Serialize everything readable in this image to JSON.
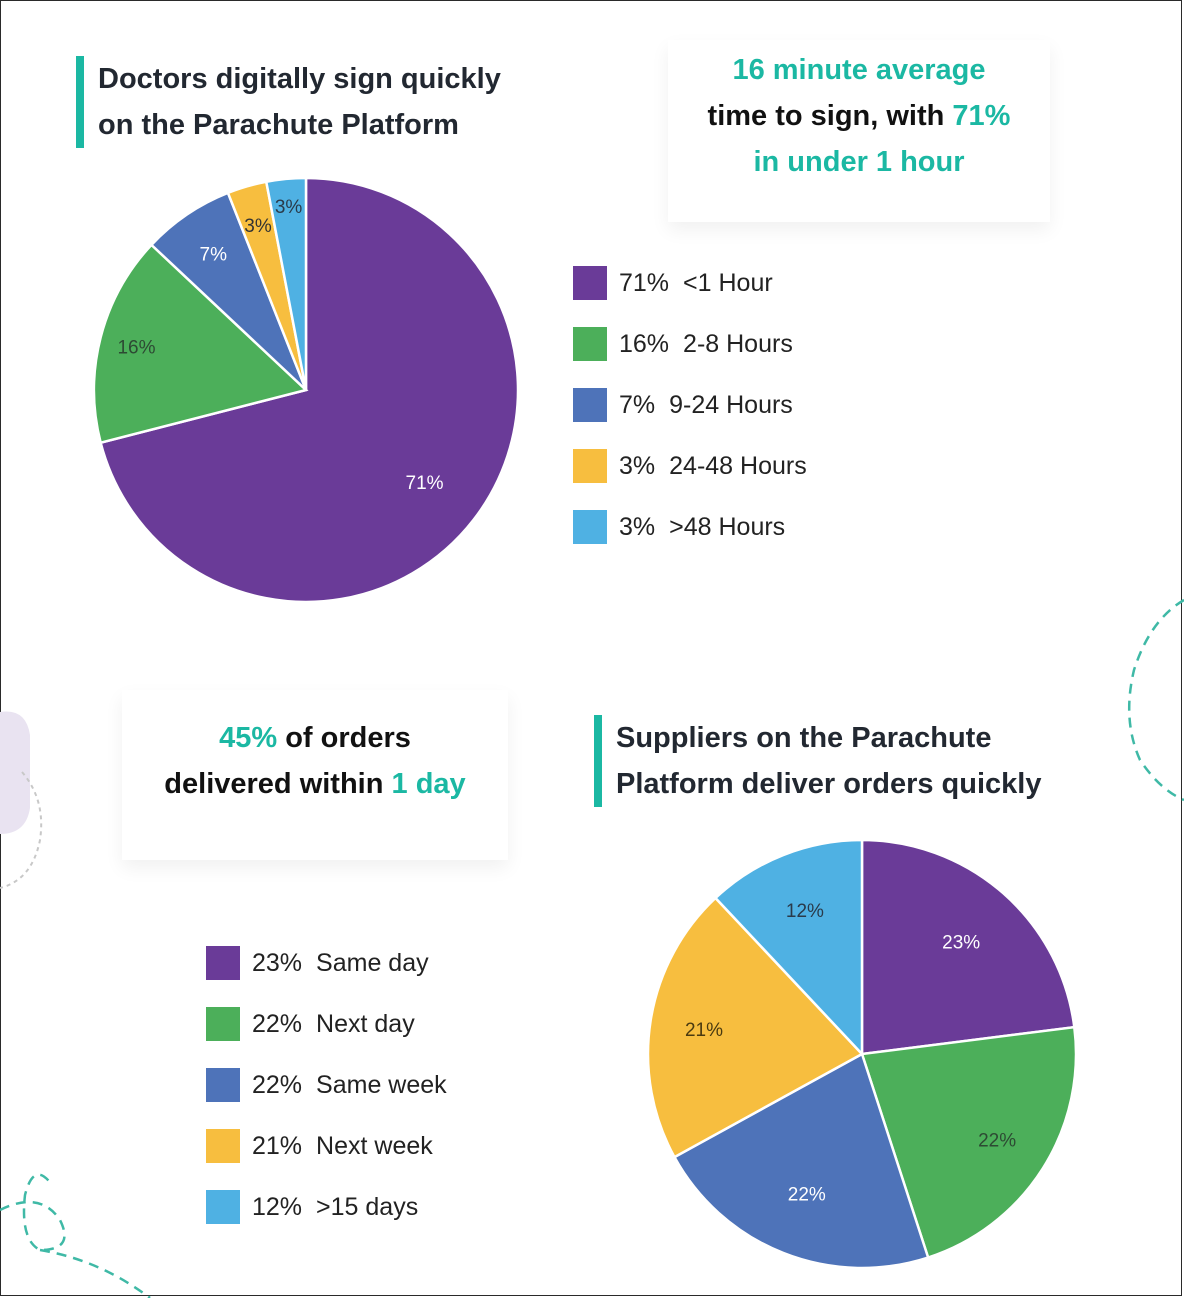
{
  "colors": {
    "purple": "#6a3b98",
    "green": "#4caf5a",
    "blue": "#4e73b9",
    "yellow": "#f7be3f",
    "lightblue": "#4fb1e3",
    "teal": "#1bb8a3"
  },
  "section1": {
    "heading_line1": "Doctors digitally sign quickly",
    "heading_line2": "on the Parachute Platform",
    "callout": {
      "l1": "16 minute average",
      "l2_a": "time to sign, with ",
      "l2_b": "71%",
      "l3": "in under 1 hour"
    }
  },
  "section2": {
    "heading_line1": "Suppliers on the Parachute",
    "heading_line2": "Platform deliver orders quickly",
    "callout": {
      "l1_a": "45%",
      "l1_b": " of orders",
      "l2_a": "delivered within ",
      "l2_b": "1 day"
    }
  },
  "chart_data": [
    {
      "type": "pie",
      "title": "Doctors digitally sign quickly on the Parachute Platform",
      "categories": [
        "<1 Hour",
        "2-8 Hours",
        "9-24 Hours",
        "24-48 Hours",
        ">48 Hours"
      ],
      "values": [
        71,
        16,
        7,
        3,
        3
      ],
      "slice_labels": [
        "71%",
        "16%",
        "7%",
        "3%",
        "3%"
      ],
      "colors": [
        "#6a3b98",
        "#4caf5a",
        "#4e73b9",
        "#f7be3f",
        "#4fb1e3"
      ],
      "legend": [
        {
          "pct": "71%",
          "label": "<1 Hour"
        },
        {
          "pct": "16%",
          "label": "2-8 Hours"
        },
        {
          "pct": "7%",
          "label": "9-24 Hours"
        },
        {
          "pct": "3%",
          "label": "24-48 Hours"
        },
        {
          "pct": "3%",
          "label": ">48 Hours"
        }
      ],
      "legend_position": "right"
    },
    {
      "type": "pie",
      "title": "Suppliers on the Parachute Platform deliver orders quickly",
      "categories": [
        "Same day",
        "Next day",
        "Same week",
        "Next week",
        ">15 days"
      ],
      "values": [
        23,
        22,
        22,
        21,
        12
      ],
      "slice_labels": [
        "23%",
        "22%",
        "22%",
        "21%",
        "12%"
      ],
      "colors": [
        "#6a3b98",
        "#4caf5a",
        "#4e73b9",
        "#f7be3f",
        "#4fb1e3"
      ],
      "legend": [
        {
          "pct": "23%",
          "label": "Same day"
        },
        {
          "pct": "22%",
          "label": "Next day"
        },
        {
          "pct": "22%",
          "label": "Same week"
        },
        {
          "pct": "21%",
          "label": "Next week"
        },
        {
          "pct": "12%",
          "label": ">15 days"
        }
      ],
      "legend_position": "left"
    }
  ]
}
